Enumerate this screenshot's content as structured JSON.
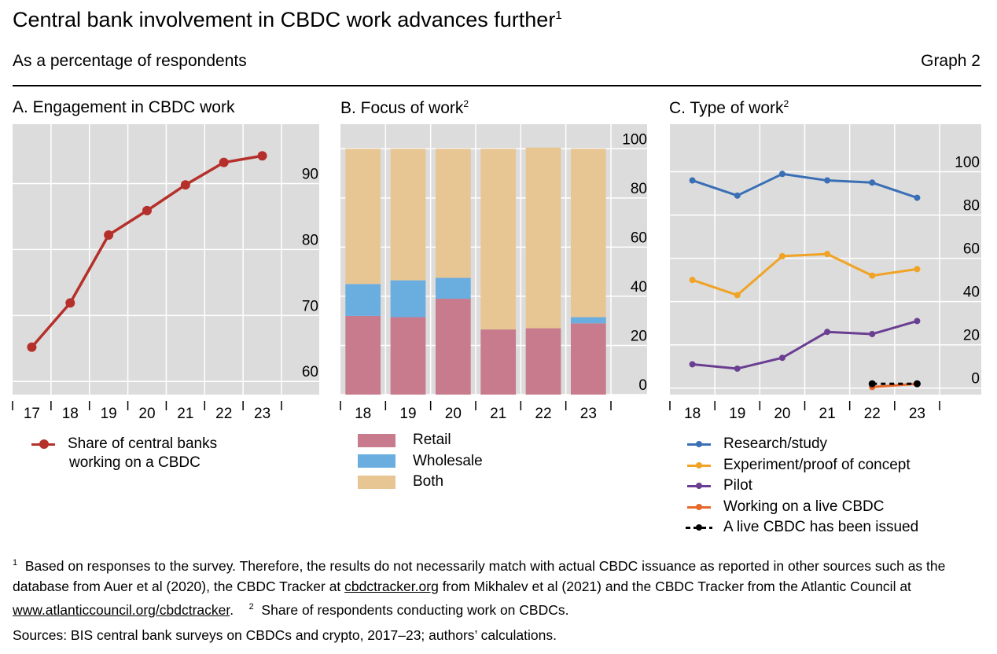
{
  "header": {
    "title": "Central bank involvement in CBDC work advances further",
    "title_note": "1",
    "subtitle": "As a percentage of respondents",
    "graph_label": "Graph 2"
  },
  "chart_data": [
    {
      "id": "A",
      "type": "line",
      "title": "A. Engagement in CBDC work",
      "title_note": "",
      "x": [
        "17",
        "18",
        "19",
        "20",
        "21",
        "22",
        "23"
      ],
      "ylim": [
        58,
        99
      ],
      "yticks": [
        60,
        70,
        80,
        90
      ],
      "series": [
        {
          "name": "Share of central banks working on a CBDC",
          "color": "#b5302a",
          "values": [
            65.2,
            71.9,
            82.2,
            85.9,
            89.8,
            93.2,
            94.2
          ]
        }
      ],
      "legend": [
        "Share of central banks",
        "working on a CBDC"
      ]
    },
    {
      "id": "B",
      "type": "bar",
      "stacked": true,
      "title": "B. Focus of work",
      "title_note": "2",
      "categories": [
        "18",
        "19",
        "20",
        "21",
        "22",
        "23"
      ],
      "ylim": [
        0,
        110
      ],
      "yticks": [
        0,
        20,
        40,
        60,
        80,
        100
      ],
      "series": [
        {
          "name": "Retail",
          "color": "#c77b8d",
          "values": [
            32,
            31.5,
            39,
            26.5,
            27,
            29
          ]
        },
        {
          "name": "Wholesale",
          "color": "#6aaee0",
          "values": [
            13,
            15,
            8.5,
            0,
            0,
            2.5
          ]
        },
        {
          "name": "Both",
          "color": "#e8c694",
          "values": [
            55,
            53.5,
            52.5,
            73.5,
            73.5,
            68.5
          ]
        }
      ]
    },
    {
      "id": "C",
      "type": "line",
      "title": "C. Type of work",
      "title_note": "2",
      "x": [
        "18",
        "19",
        "20",
        "21",
        "22",
        "23"
      ],
      "ylim": [
        -3,
        122
      ],
      "yticks": [
        0,
        20,
        40,
        60,
        80,
        100
      ],
      "series": [
        {
          "name": "Research/study",
          "color": "#3a6fb5",
          "dashed": false,
          "values": [
            96,
            89,
            99,
            96,
            95,
            88
          ]
        },
        {
          "name": "Experiment/proof of concept",
          "color": "#f0a325",
          "dashed": false,
          "values": [
            50,
            43,
            61,
            62,
            52,
            55
          ]
        },
        {
          "name": "Pilot",
          "color": "#6a3e92",
          "dashed": false,
          "values": [
            11,
            9,
            14,
            26,
            25,
            31
          ]
        },
        {
          "name": "Working on a live CBDC",
          "color": "#e8672a",
          "dashed": false,
          "values": [
            null,
            null,
            null,
            null,
            0.5,
            2
          ]
        },
        {
          "name": "A live CBDC has been issued",
          "color": "#000000",
          "dashed": true,
          "values": [
            null,
            null,
            null,
            null,
            2,
            2
          ]
        }
      ]
    }
  ],
  "notes": {
    "n1_mark": "1",
    "n1_text": "Based on responses to the survey. Therefore, the results do not necessarily match with actual CBDC issuance as reported in other sources such as the database from Auer et al (2020), the CBDC Tracker at",
    "n1_link1": "cbdctracker.org",
    "n1_mid": "from Mikhalev et al (2021) and the CBDC Tracker from the Atlantic Council at",
    "n1_link2": "www.atlanticcouncil.org/cbdctracker",
    "n1_end": ".",
    "n2_mark": "2",
    "n2_text": "Share of respondents conducting work on CBDCs.",
    "sources": "Sources: BIS central bank surveys on CBDCs and crypto, 2017–23; authors’ calculations."
  }
}
